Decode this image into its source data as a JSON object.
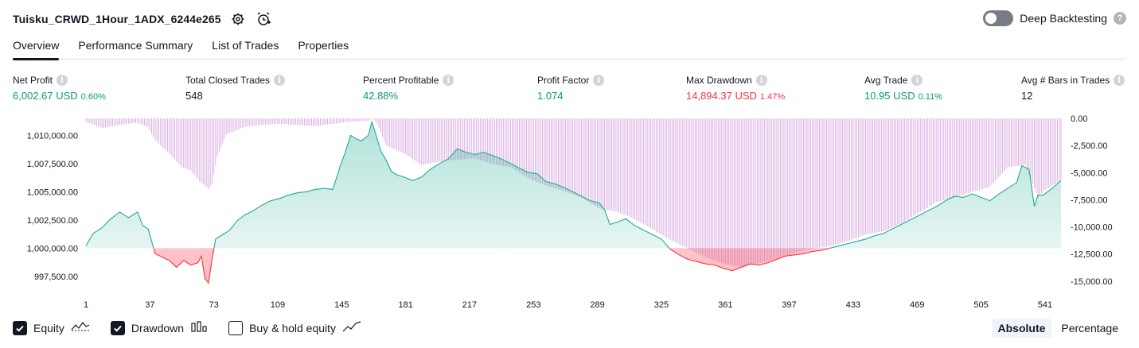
{
  "header": {
    "strategy_name": "Tuisku_CRWD_1Hour_1ADX_6244e265",
    "icons": [
      "gear-icon",
      "alarm-clock-add-icon"
    ],
    "deep_backtesting_label": "Deep Backtesting",
    "deep_backtesting_enabled": false
  },
  "tabs": [
    {
      "label": "Overview",
      "active": true
    },
    {
      "label": "Performance Summary",
      "active": false
    },
    {
      "label": "List of Trades",
      "active": false
    },
    {
      "label": "Properties",
      "active": false
    }
  ],
  "metrics": {
    "net_profit": {
      "label": "Net Profit",
      "value": "6,002.67 USD",
      "pct": "0.60%"
    },
    "total_closed_trades": {
      "label": "Total Closed Trades",
      "value": "548"
    },
    "percent_profitable": {
      "label": "Percent Profitable",
      "value": "42.88%"
    },
    "profit_factor": {
      "label": "Profit Factor",
      "value": "1.074"
    },
    "max_drawdown": {
      "label": "Max Drawdown",
      "value": "14,894.37 USD",
      "pct": "1.47%"
    },
    "avg_trade": {
      "label": "Avg Trade",
      "value": "10.95 USD",
      "pct": "0.11%"
    },
    "avg_bars": {
      "label": "Avg # Bars in Trades",
      "value": "12"
    }
  },
  "colors": {
    "positive": "#089981",
    "negative": "#f23645",
    "equity_line": "#22ab94",
    "drawdown_bar": "#ce93d8"
  },
  "chart_data": {
    "type": "area",
    "x_tick_labels": [
      "1",
      "37",
      "73",
      "109",
      "145",
      "181",
      "217",
      "253",
      "289",
      "325",
      "361",
      "397",
      "433",
      "469",
      "505",
      "541"
    ],
    "left_axis_labels": [
      "1,010,000.00",
      "1,007,500.00",
      "1,005,000.00",
      "1,002,500.00",
      "1,000,000.00",
      "997,500.00"
    ],
    "right_axis_labels": [
      "0.00",
      "-2,500.00",
      "-5,000.00",
      "-7,500.00",
      "-10,000.00",
      "-12,500.00",
      "-15,000.00"
    ],
    "equity_ylim": [
      996500,
      1011500
    ],
    "drawdown_ylim": [
      -15600,
      0
    ],
    "baseline": 1000000,
    "series": [
      {
        "name": "Equity",
        "x": [
          1,
          5,
          10,
          15,
          20,
          25,
          30,
          33,
          36,
          40,
          44,
          48,
          52,
          56,
          60,
          64,
          66,
          68,
          70,
          72,
          74,
          78,
          82,
          86,
          90,
          95,
          100,
          105,
          110,
          115,
          120,
          125,
          130,
          135,
          140,
          144,
          147,
          150,
          153,
          156,
          160,
          162,
          164,
          167,
          170,
          173,
          176,
          180,
          185,
          190,
          195,
          200,
          205,
          210,
          215,
          220,
          225,
          230,
          235,
          240,
          245,
          250,
          255,
          260,
          265,
          270,
          275,
          280,
          285,
          290,
          293,
          296,
          300,
          305,
          310,
          315,
          320,
          325,
          330,
          335,
          340,
          345,
          350,
          355,
          360,
          365,
          370,
          375,
          380,
          385,
          390,
          395,
          400,
          405,
          410,
          415,
          420,
          425,
          430,
          435,
          440,
          445,
          450,
          455,
          460,
          465,
          470,
          475,
          480,
          485,
          490,
          495,
          500,
          505,
          510,
          515,
          520,
          525,
          528,
          532,
          535,
          537,
          540,
          545,
          550
        ],
        "values": [
          1000200,
          1001300,
          1001800,
          1002600,
          1003200,
          1002700,
          1003200,
          1002000,
          1001700,
          999500,
          999200,
          998900,
          998300,
          998900,
          998500,
          998700,
          999300,
          997300,
          996900,
          999000,
          1000800,
          1001200,
          1001600,
          1002400,
          1002900,
          1003300,
          1003800,
          1004200,
          1004400,
          1004700,
          1004900,
          1005000,
          1005200,
          1005300,
          1005200,
          1007200,
          1008500,
          1010000,
          1009700,
          1009500,
          1010000,
          1011200,
          1010200,
          1008600,
          1007800,
          1006800,
          1006500,
          1006300,
          1006000,
          1006300,
          1007000,
          1007500,
          1007900,
          1008800,
          1008500,
          1008300,
          1008500,
          1008200,
          1007900,
          1007500,
          1007100,
          1006700,
          1006600,
          1005900,
          1005700,
          1005400,
          1005000,
          1004600,
          1004200,
          1004000,
          1003400,
          1002100,
          1002300,
          1002600,
          1002000,
          1001600,
          1001200,
          1000800,
          999900,
          999400,
          999000,
          998800,
          998600,
          998500,
          998200,
          998000,
          998300,
          998600,
          998500,
          998700,
          999000,
          999300,
          999400,
          999500,
          999700,
          999800,
          1000000,
          1000200,
          1000400,
          1000600,
          1000800,
          1001100,
          1001300,
          1001700,
          1002100,
          1002500,
          1002900,
          1003300,
          1003700,
          1004200,
          1004600,
          1004500,
          1004800,
          1004500,
          1004200,
          1004800,
          1005300,
          1005800,
          1007300,
          1007000,
          1003700,
          1004700,
          1004700,
          1005300,
          1006000
        ]
      },
      {
        "name": "Drawdown",
        "x": [
          1,
          10,
          20,
          30,
          36,
          40,
          45,
          50,
          55,
          60,
          65,
          70,
          72,
          75,
          80,
          90,
          100,
          110,
          120,
          130,
          140,
          150,
          160,
          162,
          165,
          170,
          180,
          190,
          200,
          210,
          220,
          230,
          240,
          250,
          260,
          270,
          280,
          290,
          300,
          310,
          320,
          330,
          340,
          350,
          360,
          370,
          380,
          390,
          400,
          410,
          420,
          430,
          440,
          450,
          460,
          470,
          480,
          490,
          500,
          510,
          520,
          530,
          537,
          540,
          550
        ],
        "values": [
          -300,
          -900,
          -600,
          -400,
          -800,
          -2000,
          -2800,
          -3600,
          -4500,
          -4800,
          -5800,
          -6500,
          -6000,
          -3500,
          -1500,
          -800,
          -600,
          -500,
          -600,
          -700,
          -500,
          -300,
          -200,
          0,
          -500,
          -2500,
          -3200,
          -4300,
          -4000,
          -3800,
          -3700,
          -4200,
          -4500,
          -5500,
          -6200,
          -6700,
          -7300,
          -8300,
          -8600,
          -9300,
          -10200,
          -11200,
          -12000,
          -12800,
          -13400,
          -13700,
          -13300,
          -13000,
          -12400,
          -12000,
          -11800,
          -11300,
          -10700,
          -10400,
          -9700,
          -8700,
          -7700,
          -7300,
          -6800,
          -6300,
          -4500,
          -4300,
          -7300,
          -6700,
          -5700
        ]
      }
    ]
  },
  "legend": {
    "items": [
      {
        "label": "Equity",
        "checked": true,
        "icon": "equity-line-icon"
      },
      {
        "label": "Drawdown",
        "checked": true,
        "icon": "drawdown-bars-icon"
      },
      {
        "label": "Buy & hold equity",
        "checked": false,
        "icon": "buy-hold-line-icon"
      }
    ],
    "modes": [
      {
        "label": "Absolute",
        "selected": true
      },
      {
        "label": "Percentage",
        "selected": false
      }
    ]
  }
}
